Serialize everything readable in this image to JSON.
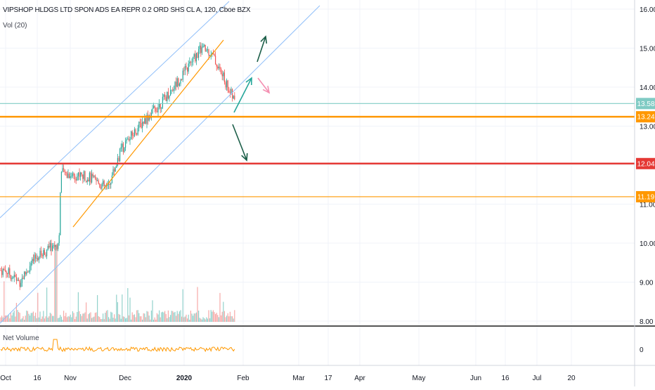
{
  "header": {
    "title": "VIPSHOP HLDGS LTD SPON ADS EA REPR 0.2 ORD SHS CL A, 120, Cboe BZX",
    "volume_indicator": "Vol (20)",
    "net_volume_indicator": "Net Volume"
  },
  "colors": {
    "up": "#26a69a",
    "down": "#ef5350",
    "channel": "#90bff9",
    "orange_line": "#ff9800",
    "red_line": "#e53935",
    "teal_line": "#80cbc4",
    "arrow_teal": "#26a69a",
    "arrow_dark_green": "#1b5e48",
    "arrow_pink": "#f48fb1",
    "net_volume": "#ff9800"
  },
  "chart_data": [
    {
      "type": "candlestick",
      "title": "VIPSHOP HLDGS LTD SPON ADS EA REPR 0.2 ORD SHS CL A, 120, Cboe BZX",
      "interval": "120",
      "exchange": "Cboe BZX",
      "x_tick_labels": [
        "Oct",
        "16",
        "Nov",
        "Dec",
        "2020",
        "Feb",
        "Mar",
        "17",
        "Apr",
        "May",
        "Jun",
        "16",
        "Jul",
        "20"
      ],
      "y_tick_labels": [
        "16.00",
        "15.00",
        "14.00",
        "13.00",
        "12.00",
        "11.00",
        "10.00",
        "9.00",
        "8.00"
      ],
      "ylim": [
        7.9,
        16.3
      ],
      "price_path": [
        {
          "t": "Oct 1",
          "close": 9.3
        },
        {
          "t": "Oct 8",
          "close": 9.0
        },
        {
          "t": "Oct 16",
          "close": 9.6
        },
        {
          "t": "Oct 24",
          "close": 9.9
        },
        {
          "t": "Oct 28",
          "close": 10.0
        },
        {
          "t": "Oct 29",
          "close": 11.8
        },
        {
          "t": "Nov 12",
          "close": 11.7
        },
        {
          "t": "Nov 22",
          "close": 11.4
        },
        {
          "t": "Nov 29",
          "close": 12.4
        },
        {
          "t": "Dec 10",
          "close": 13.1
        },
        {
          "t": "Dec 20",
          "close": 13.6
        },
        {
          "t": "Dec 31",
          "close": 14.3
        },
        {
          "t": "Jan 10",
          "close": 15.0
        },
        {
          "t": "Jan 15",
          "close": 14.9
        },
        {
          "t": "Jan 21",
          "close": 14.3
        },
        {
          "t": "Jan 28",
          "close": 13.58
        }
      ],
      "horizontal_levels": [
        {
          "label": "13.58",
          "value": 13.58,
          "color": "#80cbc4",
          "style": "thin"
        },
        {
          "label": "13.24",
          "value": 13.24,
          "color": "#ff9800",
          "style": "thick"
        },
        {
          "label": "12.04",
          "value": 12.04,
          "color": "#e53935",
          "style": "thick"
        },
        {
          "label": "11.19",
          "value": 11.19,
          "color": "#ff9800",
          "style": "thin"
        }
      ],
      "volume_indicator": "Vol (20)"
    },
    {
      "type": "area",
      "title": "Net Volume",
      "y_tick_labels": [
        "0"
      ]
    }
  ]
}
